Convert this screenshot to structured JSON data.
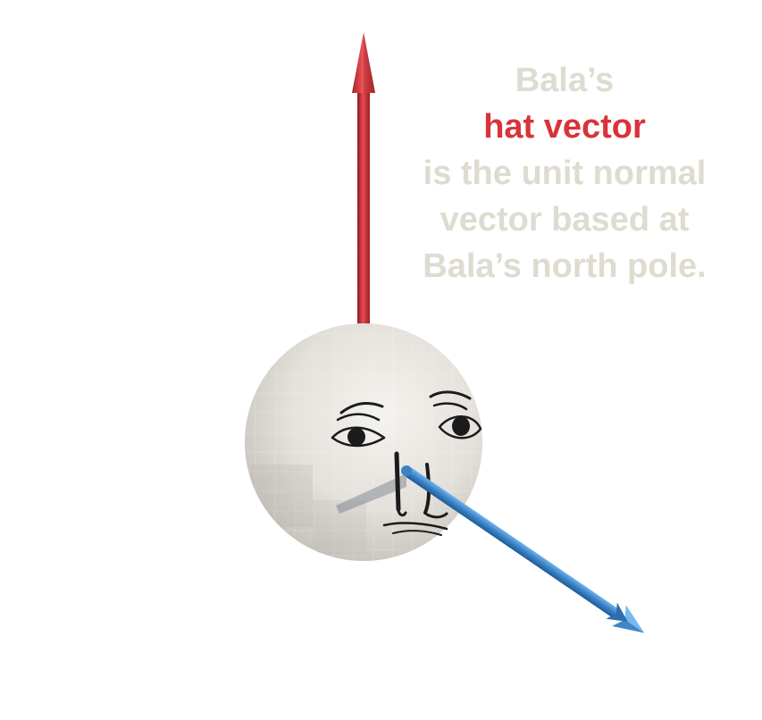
{
  "caption": {
    "line1": "Bala’s",
    "line2": "hat vector",
    "line3": "is the unit normal",
    "line4": "vector based at",
    "line5": "Bala’s north pole."
  },
  "colors": {
    "hat_vector": "#d8333a",
    "nose_vector": "#3f86c9",
    "caption_text": "#dedbd0",
    "sphere": "#e6e3de"
  },
  "icons": {
    "hat_vector": "red-arrow-icon",
    "nose_vector": "blue-arrow-icon",
    "sphere": "bala-face-sphere"
  }
}
